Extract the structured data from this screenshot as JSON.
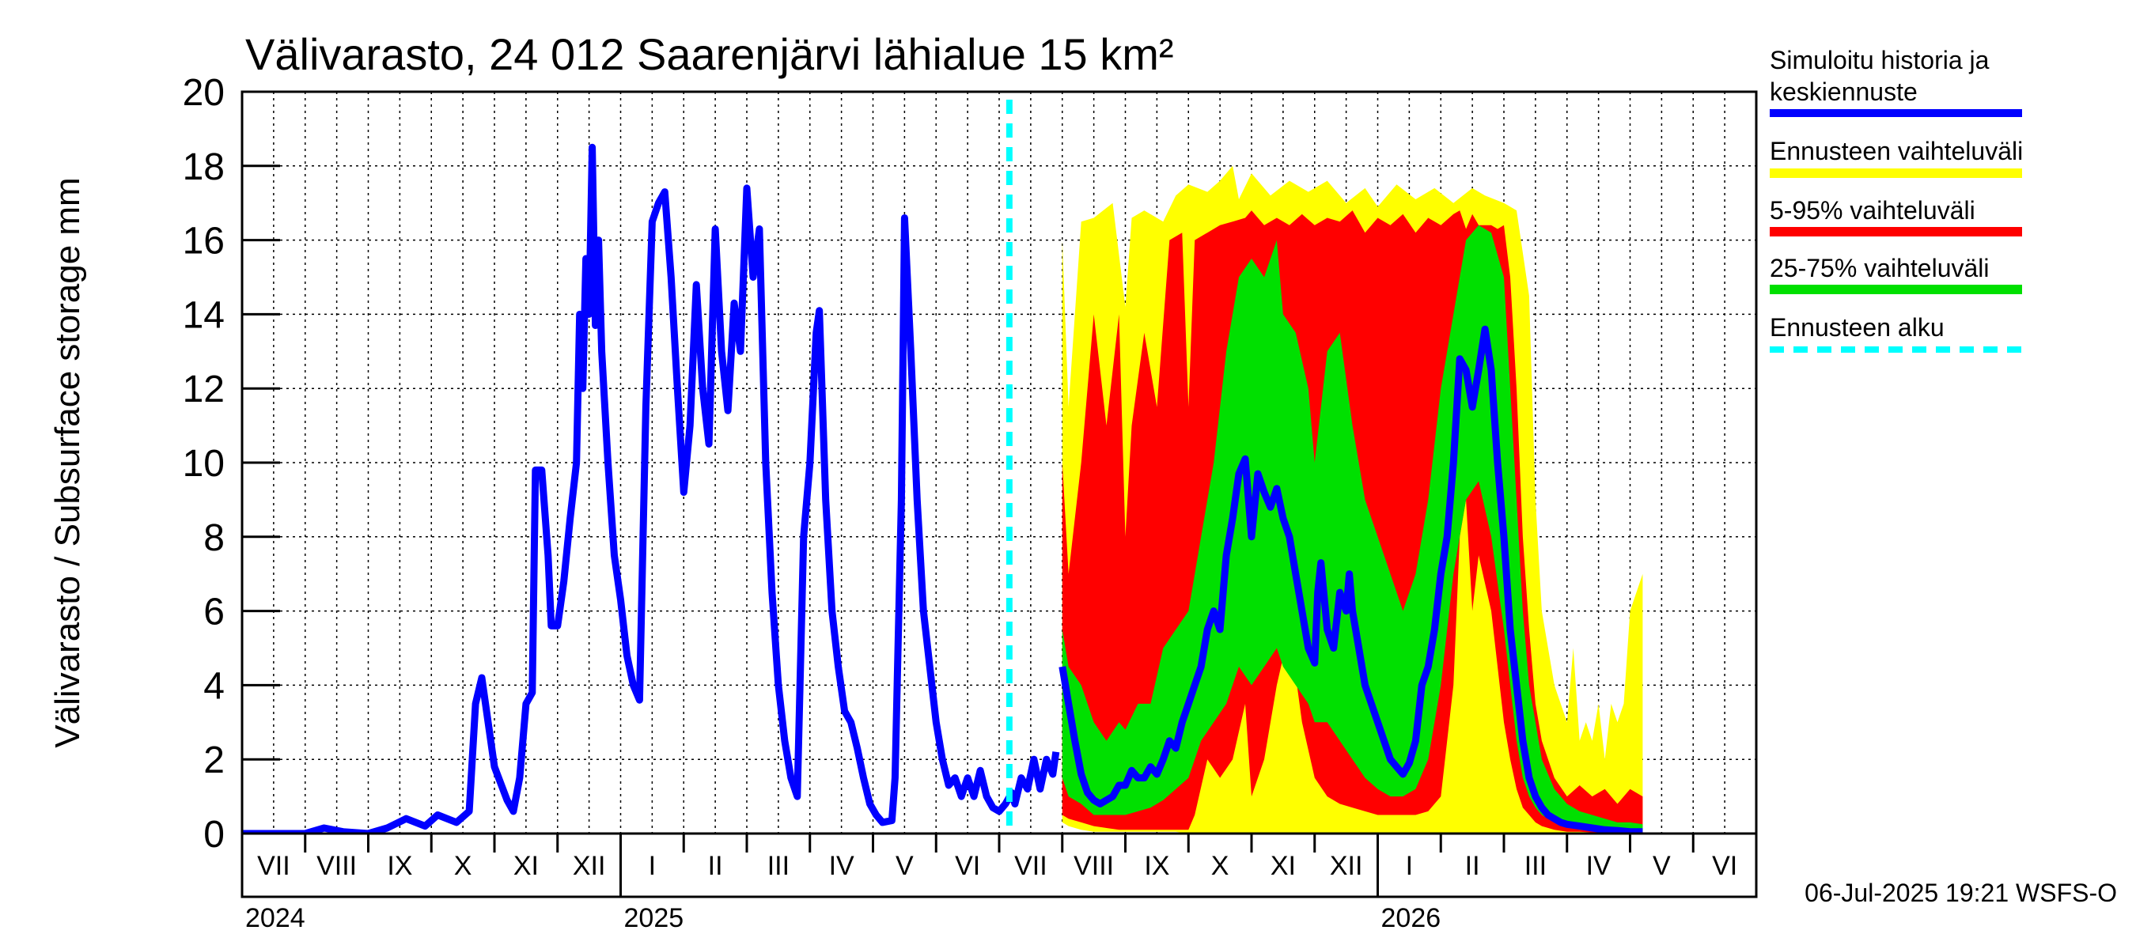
{
  "chart_data": {
    "type": "area",
    "title": "Välivarasto, 24 012 Saarenjärvi lähialue 15 km²",
    "ylabel": "Välivarasto / Subsurface storage  mm",
    "ylim": [
      0,
      20
    ],
    "yticks": [
      0,
      2,
      4,
      6,
      8,
      10,
      12,
      14,
      16,
      18,
      20
    ],
    "grid": true,
    "legend_position": "right",
    "months": [
      "VII",
      "VIII",
      "IX",
      "X",
      "XI",
      "XII",
      "I",
      "II",
      "III",
      "IV",
      "V",
      "VI",
      "VII",
      "VIII",
      "IX",
      "X",
      "XI",
      "XII",
      "I",
      "II",
      "III",
      "IV",
      "V",
      "VI"
    ],
    "years": [
      {
        "label": "2024",
        "month_index": 0
      },
      {
        "label": "2025",
        "month_index": 6
      },
      {
        "label": "2026",
        "month_index": 18
      }
    ],
    "forecast_start": "2025-07-06",
    "timestamp": "06-Jul-2025 19:21 WSFS-O",
    "legend": [
      {
        "label": "Simuloitu historia ja keskiennuste",
        "color": "#0000ff",
        "style": "solid"
      },
      {
        "label": "Ennusteen vaihteluväli",
        "color": "#ffff00",
        "style": "solid"
      },
      {
        "label": "5-95% vaihteluväli",
        "color": "#ff0000",
        "style": "solid"
      },
      {
        "label": "25-75% vaihteluväli",
        "color": "#00e000",
        "style": "solid"
      },
      {
        "label": "Ennusteen alku",
        "color": "#00ffff",
        "style": "dashed"
      }
    ],
    "history": [
      [
        0,
        0.0
      ],
      [
        0.5,
        0.0
      ],
      [
        1.0,
        0.0
      ],
      [
        1.3,
        0.15
      ],
      [
        1.6,
        0.05
      ],
      [
        2.0,
        0.0
      ],
      [
        2.3,
        0.15
      ],
      [
        2.6,
        0.4
      ],
      [
        2.9,
        0.2
      ],
      [
        3.1,
        0.5
      ],
      [
        3.4,
        0.3
      ],
      [
        3.6,
        0.6
      ],
      [
        3.7,
        3.5
      ],
      [
        3.8,
        4.2
      ],
      [
        3.9,
        3.0
      ],
      [
        4.0,
        1.8
      ],
      [
        4.2,
        0.9
      ],
      [
        4.3,
        0.6
      ],
      [
        4.4,
        1.5
      ],
      [
        4.5,
        3.5
      ],
      [
        4.6,
        3.8
      ],
      [
        4.65,
        9.8
      ],
      [
        4.75,
        9.8
      ],
      [
        4.85,
        7.5
      ],
      [
        4.9,
        5.6
      ],
      [
        5.0,
        5.6
      ],
      [
        5.1,
        6.8
      ],
      [
        5.2,
        8.5
      ],
      [
        5.3,
        10.0
      ],
      [
        5.35,
        14.0
      ],
      [
        5.4,
        12.0
      ],
      [
        5.45,
        15.5
      ],
      [
        5.5,
        14.0
      ],
      [
        5.55,
        18.5
      ],
      [
        5.6,
        13.7
      ],
      [
        5.65,
        16.0
      ],
      [
        5.7,
        13.0
      ],
      [
        5.8,
        10.0
      ],
      [
        5.9,
        7.5
      ],
      [
        6.0,
        6.3
      ],
      [
        6.1,
        4.8
      ],
      [
        6.2,
        4.0
      ],
      [
        6.3,
        3.6
      ],
      [
        6.4,
        11.5
      ],
      [
        6.5,
        16.5
      ],
      [
        6.6,
        17.0
      ],
      [
        6.7,
        17.3
      ],
      [
        6.8,
        15.0
      ],
      [
        6.9,
        12.0
      ],
      [
        7.0,
        9.2
      ],
      [
        7.1,
        11.0
      ],
      [
        7.2,
        14.8
      ],
      [
        7.3,
        12.0
      ],
      [
        7.4,
        10.5
      ],
      [
        7.5,
        16.3
      ],
      [
        7.6,
        13.0
      ],
      [
        7.7,
        11.4
      ],
      [
        7.8,
        14.3
      ],
      [
        7.9,
        13.0
      ],
      [
        8.0,
        17.4
      ],
      [
        8.1,
        15.0
      ],
      [
        8.2,
        16.3
      ],
      [
        8.3,
        10.0
      ],
      [
        8.4,
        6.5
      ],
      [
        8.5,
        4.0
      ],
      [
        8.6,
        2.5
      ],
      [
        8.7,
        1.5
      ],
      [
        8.8,
        1.0
      ],
      [
        8.9,
        8.0
      ],
      [
        9.0,
        10.0
      ],
      [
        9.1,
        13.5
      ],
      [
        9.15,
        14.1
      ],
      [
        9.25,
        9.0
      ],
      [
        9.35,
        6.0
      ],
      [
        9.45,
        4.5
      ],
      [
        9.55,
        3.3
      ],
      [
        9.65,
        3.0
      ],
      [
        9.75,
        2.3
      ],
      [
        9.85,
        1.5
      ],
      [
        9.95,
        0.8
      ],
      [
        10.05,
        0.5
      ],
      [
        10.15,
        0.3
      ],
      [
        10.3,
        0.35
      ],
      [
        10.35,
        1.5
      ],
      [
        10.45,
        9.0
      ],
      [
        10.5,
        16.6
      ],
      [
        10.6,
        13.0
      ],
      [
        10.7,
        9.0
      ],
      [
        10.8,
        6.0
      ],
      [
        10.9,
        4.5
      ],
      [
        11.0,
        3.0
      ],
      [
        11.1,
        2.0
      ],
      [
        11.2,
        1.3
      ],
      [
        11.3,
        1.5
      ],
      [
        11.4,
        1.0
      ],
      [
        11.5,
        1.5
      ],
      [
        11.6,
        1.0
      ],
      [
        11.7,
        1.7
      ],
      [
        11.8,
        1.0
      ],
      [
        11.9,
        0.7
      ],
      [
        12.0,
        0.6
      ],
      [
        12.1,
        0.8
      ],
      [
        12.2,
        1.1
      ],
      [
        12.25,
        0.8
      ],
      [
        12.35,
        1.5
      ],
      [
        12.45,
        1.2
      ],
      [
        12.55,
        2.0
      ],
      [
        12.65,
        1.2
      ],
      [
        12.75,
        2.0
      ],
      [
        12.85,
        1.6
      ],
      [
        12.9,
        2.2
      ]
    ],
    "forecast_median": [
      [
        13.0,
        4.5
      ],
      [
        13.1,
        3.5
      ],
      [
        13.2,
        2.5
      ],
      [
        13.3,
        1.6
      ],
      [
        13.4,
        1.1
      ],
      [
        13.5,
        0.9
      ],
      [
        13.6,
        0.8
      ],
      [
        13.7,
        0.9
      ],
      [
        13.8,
        1.0
      ],
      [
        13.9,
        1.3
      ],
      [
        14.0,
        1.3
      ],
      [
        14.1,
        1.7
      ],
      [
        14.2,
        1.5
      ],
      [
        14.3,
        1.5
      ],
      [
        14.4,
        1.8
      ],
      [
        14.5,
        1.6
      ],
      [
        14.6,
        2.0
      ],
      [
        14.7,
        2.5
      ],
      [
        14.8,
        2.3
      ],
      [
        14.9,
        3.0
      ],
      [
        15.0,
        3.5
      ],
      [
        15.1,
        4.0
      ],
      [
        15.2,
        4.5
      ],
      [
        15.3,
        5.5
      ],
      [
        15.4,
        6.0
      ],
      [
        15.5,
        5.5
      ],
      [
        15.6,
        7.5
      ],
      [
        15.7,
        8.5
      ],
      [
        15.8,
        9.7
      ],
      [
        15.9,
        10.1
      ],
      [
        16.0,
        8.0
      ],
      [
        16.1,
        9.7
      ],
      [
        16.2,
        9.2
      ],
      [
        16.3,
        8.8
      ],
      [
        16.4,
        9.3
      ],
      [
        16.5,
        8.5
      ],
      [
        16.6,
        8.0
      ],
      [
        16.7,
        7.0
      ],
      [
        16.8,
        6.0
      ],
      [
        16.9,
        5.0
      ],
      [
        17.0,
        4.6
      ],
      [
        17.05,
        6.5
      ],
      [
        17.1,
        7.3
      ],
      [
        17.2,
        5.5
      ],
      [
        17.3,
        5.0
      ],
      [
        17.4,
        6.5
      ],
      [
        17.5,
        6.0
      ],
      [
        17.55,
        7.0
      ],
      [
        17.6,
        6.0
      ],
      [
        17.7,
        5.0
      ],
      [
        17.8,
        4.0
      ],
      [
        17.9,
        3.5
      ],
      [
        18.0,
        3.0
      ],
      [
        18.1,
        2.5
      ],
      [
        18.2,
        2.0
      ],
      [
        18.3,
        1.8
      ],
      [
        18.4,
        1.6
      ],
      [
        18.5,
        1.9
      ],
      [
        18.6,
        2.5
      ],
      [
        18.7,
        4.0
      ],
      [
        18.8,
        4.5
      ],
      [
        18.9,
        5.5
      ],
      [
        19.0,
        7.0
      ],
      [
        19.1,
        8.0
      ],
      [
        19.2,
        10.0
      ],
      [
        19.3,
        12.8
      ],
      [
        19.4,
        12.5
      ],
      [
        19.5,
        11.5
      ],
      [
        19.6,
        12.5
      ],
      [
        19.7,
        13.6
      ],
      [
        19.8,
        12.5
      ],
      [
        19.9,
        10.0
      ],
      [
        20.0,
        8.0
      ],
      [
        20.1,
        5.5
      ],
      [
        20.2,
        4.0
      ],
      [
        20.3,
        2.5
      ],
      [
        20.4,
        1.5
      ],
      [
        20.5,
        1.0
      ],
      [
        20.6,
        0.7
      ],
      [
        20.7,
        0.5
      ],
      [
        20.8,
        0.4
      ],
      [
        20.9,
        0.3
      ],
      [
        21.0,
        0.25
      ],
      [
        21.2,
        0.2
      ],
      [
        21.4,
        0.15
      ],
      [
        21.6,
        0.1
      ],
      [
        21.8,
        0.08
      ],
      [
        22.0,
        0.05
      ],
      [
        22.2,
        0.05
      ]
    ],
    "range_envelope": [
      [
        13.0,
        0.3,
        16.0
      ],
      [
        13.1,
        0.2,
        11.5
      ],
      [
        13.3,
        0.1,
        16.5
      ],
      [
        13.5,
        0.05,
        16.6
      ],
      [
        13.8,
        0.05,
        17.0
      ],
      [
        14.0,
        0.05,
        14.2
      ],
      [
        14.1,
        0.05,
        16.6
      ],
      [
        14.3,
        0.05,
        16.8
      ],
      [
        14.6,
        0.05,
        16.5
      ],
      [
        14.8,
        0.05,
        17.2
      ],
      [
        15.0,
        0.0,
        17.5
      ],
      [
        15.3,
        0.0,
        17.3
      ],
      [
        15.5,
        0.0,
        17.6
      ],
      [
        15.7,
        0.0,
        18.0
      ],
      [
        15.8,
        0.0,
        17.1
      ],
      [
        16.0,
        0.0,
        17.8
      ],
      [
        16.3,
        0.0,
        17.2
      ],
      [
        16.6,
        0.0,
        17.6
      ],
      [
        16.9,
        0.0,
        17.3
      ],
      [
        17.2,
        0.0,
        17.6
      ],
      [
        17.5,
        0.0,
        17.0
      ],
      [
        17.8,
        0.0,
        17.4
      ],
      [
        18.0,
        0.0,
        16.9
      ],
      [
        18.3,
        0.0,
        17.5
      ],
      [
        18.6,
        0.0,
        17.1
      ],
      [
        18.9,
        0.0,
        17.4
      ],
      [
        19.2,
        0.0,
        17.0
      ],
      [
        19.5,
        0.0,
        17.4
      ],
      [
        19.7,
        0.0,
        17.2
      ],
      [
        20.0,
        0.0,
        17.0
      ],
      [
        20.2,
        0.0,
        16.8
      ],
      [
        20.4,
        0.0,
        14.5
      ],
      [
        20.5,
        0.0,
        9.0
      ],
      [
        20.6,
        0.0,
        6.0
      ],
      [
        20.8,
        0.0,
        4.0
      ],
      [
        21.0,
        0.0,
        3.0
      ],
      [
        21.1,
        0.0,
        5.0
      ],
      [
        21.2,
        0.0,
        2.5
      ],
      [
        21.3,
        0.0,
        3.0
      ],
      [
        21.4,
        0.0,
        2.5
      ],
      [
        21.5,
        0.0,
        3.5
      ],
      [
        21.6,
        0.0,
        2.0
      ],
      [
        21.7,
        0.0,
        3.5
      ],
      [
        21.8,
        0.0,
        3.0
      ],
      [
        21.9,
        0.0,
        3.5
      ],
      [
        22.0,
        0.0,
        6.0
      ],
      [
        22.2,
        0.0,
        7.0
      ]
    ],
    "range_5_95": [
      [
        13.0,
        0.5,
        10.0
      ],
      [
        13.1,
        0.4,
        7.0
      ],
      [
        13.3,
        0.3,
        10.0
      ],
      [
        13.5,
        0.2,
        14.0
      ],
      [
        13.7,
        0.15,
        11.0
      ],
      [
        13.9,
        0.1,
        14.0
      ],
      [
        14.0,
        0.1,
        8.0
      ],
      [
        14.1,
        0.1,
        11.0
      ],
      [
        14.3,
        0.1,
        13.5
      ],
      [
        14.5,
        0.1,
        11.5
      ],
      [
        14.7,
        0.1,
        16.0
      ],
      [
        14.9,
        0.1,
        16.2
      ],
      [
        15.0,
        0.1,
        11.5
      ],
      [
        15.1,
        0.5,
        16.0
      ],
      [
        15.3,
        2.0,
        16.2
      ],
      [
        15.5,
        1.5,
        16.4
      ],
      [
        15.7,
        2.0,
        16.5
      ],
      [
        15.9,
        3.5,
        16.6
      ],
      [
        16.0,
        1.0,
        16.8
      ],
      [
        16.2,
        2.0,
        16.4
      ],
      [
        16.4,
        4.0,
        16.6
      ],
      [
        16.6,
        5.5,
        16.4
      ],
      [
        16.8,
        3.0,
        16.7
      ],
      [
        17.0,
        1.5,
        16.4
      ],
      [
        17.2,
        1.0,
        16.6
      ],
      [
        17.4,
        0.8,
        16.5
      ],
      [
        17.6,
        0.7,
        16.8
      ],
      [
        17.8,
        0.6,
        16.2
      ],
      [
        18.0,
        0.5,
        16.6
      ],
      [
        18.2,
        0.5,
        16.4
      ],
      [
        18.4,
        0.5,
        16.7
      ],
      [
        18.6,
        0.5,
        16.2
      ],
      [
        18.8,
        0.6,
        16.6
      ],
      [
        19.0,
        1.0,
        16.4
      ],
      [
        19.2,
        4.0,
        16.7
      ],
      [
        19.3,
        8.0,
        16.8
      ],
      [
        19.4,
        9.0,
        16.3
      ],
      [
        19.5,
        6.0,
        16.7
      ],
      [
        19.6,
        7.5,
        16.4
      ],
      [
        19.8,
        6.0,
        16.4
      ],
      [
        19.9,
        4.5,
        16.3
      ],
      [
        20.0,
        3.0,
        16.4
      ],
      [
        20.1,
        2.0,
        15.0
      ],
      [
        20.2,
        1.2,
        12.0
      ],
      [
        20.3,
        0.7,
        8.0
      ],
      [
        20.4,
        0.5,
        5.5
      ],
      [
        20.5,
        0.3,
        3.5
      ],
      [
        20.6,
        0.2,
        2.5
      ],
      [
        20.8,
        0.1,
        1.5
      ],
      [
        21.0,
        0.05,
        1.0
      ],
      [
        21.2,
        0.05,
        1.3
      ],
      [
        21.4,
        0.03,
        1.0
      ],
      [
        21.6,
        0.02,
        1.2
      ],
      [
        21.8,
        0.02,
        0.8
      ],
      [
        22.0,
        0.02,
        1.2
      ],
      [
        22.2,
        0.02,
        1.0
      ]
    ],
    "range_25_75": [
      [
        13.0,
        1.5,
        5.5
      ],
      [
        13.1,
        1.0,
        4.5
      ],
      [
        13.3,
        0.8,
        4.0
      ],
      [
        13.5,
        0.5,
        3.0
      ],
      [
        13.7,
        0.5,
        2.5
      ],
      [
        13.9,
        0.5,
        3.0
      ],
      [
        14.0,
        0.5,
        2.8
      ],
      [
        14.2,
        0.6,
        3.5
      ],
      [
        14.4,
        0.7,
        3.5
      ],
      [
        14.6,
        0.9,
        5.0
      ],
      [
        14.8,
        1.2,
        5.5
      ],
      [
        15.0,
        1.5,
        6.0
      ],
      [
        15.2,
        2.5,
        8.0
      ],
      [
        15.4,
        3.0,
        10.0
      ],
      [
        15.6,
        3.5,
        13.0
      ],
      [
        15.8,
        4.5,
        15.0
      ],
      [
        16.0,
        4.0,
        15.5
      ],
      [
        16.2,
        4.5,
        15.0
      ],
      [
        16.4,
        5.0,
        16.0
      ],
      [
        16.5,
        4.5,
        14.0
      ],
      [
        16.7,
        4.0,
        13.5
      ],
      [
        16.9,
        3.5,
        12.0
      ],
      [
        17.0,
        3.0,
        10.0
      ],
      [
        17.2,
        3.0,
        13.0
      ],
      [
        17.4,
        2.5,
        13.5
      ],
      [
        17.6,
        2.0,
        11.0
      ],
      [
        17.8,
        1.5,
        9.0
      ],
      [
        18.0,
        1.2,
        8.0
      ],
      [
        18.2,
        1.0,
        7.0
      ],
      [
        18.4,
        1.0,
        6.0
      ],
      [
        18.6,
        1.2,
        7.0
      ],
      [
        18.8,
        2.0,
        9.0
      ],
      [
        19.0,
        4.0,
        12.0
      ],
      [
        19.2,
        7.0,
        14.0
      ],
      [
        19.4,
        9.0,
        16.0
      ],
      [
        19.6,
        9.5,
        16.4
      ],
      [
        19.8,
        8.0,
        16.2
      ],
      [
        20.0,
        5.5,
        15.0
      ],
      [
        20.1,
        4.0,
        12.0
      ],
      [
        20.2,
        2.5,
        9.0
      ],
      [
        20.3,
        1.5,
        6.0
      ],
      [
        20.4,
        1.0,
        4.0
      ],
      [
        20.5,
        0.7,
        3.0
      ],
      [
        20.6,
        0.5,
        2.0
      ],
      [
        20.8,
        0.3,
        1.2
      ],
      [
        21.0,
        0.2,
        0.8
      ],
      [
        21.2,
        0.1,
        0.6
      ],
      [
        21.4,
        0.08,
        0.5
      ],
      [
        21.6,
        0.06,
        0.4
      ],
      [
        21.8,
        0.05,
        0.3
      ],
      [
        22.0,
        0.04,
        0.3
      ],
      [
        22.2,
        0.04,
        0.25
      ]
    ]
  }
}
